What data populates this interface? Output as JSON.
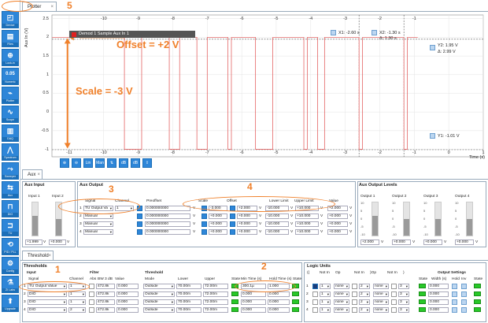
{
  "sidebar": {
    "items": [
      {
        "label": "Device",
        "icon": "device-icon",
        "glyph": "◰"
      },
      {
        "label": "Files",
        "icon": "files-icon",
        "glyph": "▤"
      },
      {
        "label": "Lock-in",
        "icon": "lockin-icon",
        "glyph": "⊕"
      },
      {
        "label": "Numeric",
        "icon": "numeric-icon",
        "glyph": "0.05"
      },
      {
        "label": "Plotter",
        "icon": "plotter-icon",
        "glyph": "⌁"
      },
      {
        "label": "Scope",
        "icon": "scope-icon",
        "glyph": "∿"
      },
      {
        "label": "DAQ",
        "icon": "daq-icon",
        "glyph": "▥"
      },
      {
        "label": "Spectrum",
        "icon": "spectrum-icon",
        "glyph": "⋀"
      },
      {
        "label": "Sweeper",
        "icon": "sweeper-icon",
        "glyph": "⤳"
      },
      {
        "label": "Aux",
        "icon": "aux-icon",
        "glyph": "⇆"
      },
      {
        "label": "DIO",
        "icon": "dio-icon",
        "glyph": "⊓"
      },
      {
        "label": "TU",
        "icon": "tu-icon",
        "glyph": "⊐"
      },
      {
        "label": "PID / PLL",
        "icon": "pid-icon",
        "glyph": "⟲"
      },
      {
        "label": "Config",
        "icon": "config-icon",
        "glyph": "⚙"
      },
      {
        "label": "ZI Labs",
        "icon": "zilabs-icon",
        "glyph": "⚗"
      },
      {
        "label": "Upgrade",
        "icon": "upgrade-icon",
        "glyph": "⬆"
      }
    ],
    "aux_side": [
      "Mon",
      "Lin"
    ]
  },
  "plotter": {
    "tab_label": "Plotter",
    "x_ticks": [
      "-10",
      "-9",
      "-8",
      "-7",
      "-6",
      "-5",
      "-4",
      "-3",
      "-2",
      "-1"
    ],
    "x_bottom_ticks": [
      "-11",
      "-10",
      "-9",
      "-8",
      "-7",
      "-6",
      "-5",
      "-4",
      "-3",
      "-2",
      "-1",
      "0",
      "1"
    ],
    "y_ticks": [
      "2.5",
      "2",
      "1.5",
      "1",
      "0.5",
      "0",
      "-0.5",
      "-1"
    ],
    "y_label": "Aux In (V)",
    "x_label": "Time (s)",
    "legend": "Demod 1 Sample Aux In 1",
    "cursor_x1": "X1: -2.60 s",
    "cursor_x2": "X2: -1.30 s",
    "cursor_dx": "Δ: 1.30 s",
    "cursor_y2": "Y2: 1.95 V",
    "cursor_dy": "Δ: 2.99 V",
    "cursor_y1": "Y1: -1.01 V",
    "tools": [
      "⊕",
      "⊖",
      "Lin",
      "Man",
      "⇅",
      "dB",
      "dB",
      "⇪"
    ],
    "annot_offset": "Offset = +2 V",
    "annot_scale": "Scale = -3 V",
    "annot_5": "5",
    "trace_color": "#e05050"
  },
  "chart_data": {
    "type": "line",
    "title": "",
    "xlabel": "Time (s)",
    "ylabel": "Aux In (V)",
    "xlim": [
      -11.5,
      1
    ],
    "ylim": [
      -1.2,
      2.6
    ],
    "series": [
      {
        "name": "Demod 1 Sample Aux In 1",
        "pulses_low": [
          [
            -9.4,
            -8.9
          ],
          [
            -8.1,
            -7.8
          ],
          [
            -7.3,
            -7.0
          ],
          [
            -6.4,
            -6.3
          ],
          [
            -5.6,
            -5.1
          ],
          [
            -4.2,
            -4.1
          ],
          [
            -3.8,
            -3.6
          ],
          [
            -2.6,
            -2.5
          ],
          [
            -1.3,
            -1.2
          ]
        ],
        "high": 2,
        "low": -1,
        "t_start": -11.5,
        "t_end": -0.9
      }
    ]
  },
  "aux": {
    "tab_label": "Aux",
    "aux_input_title": "Aux Input",
    "input1": "Input 1",
    "input2": "Input 2",
    "input_values": [
      "+1.999",
      "+0.000"
    ],
    "input_units": [
      "V",
      "V"
    ],
    "output_title": "Aux Output",
    "cols": [
      "Signal",
      "Channel",
      "Preoffset",
      "Scale",
      "Offset",
      "Lower Limit",
      "Upper Limit",
      "Value"
    ],
    "rows": [
      {
        "n": "1",
        "signal": "TU Output Va",
        "channel": "1",
        "preoffset": "0.000000000",
        "scale": "-3.000",
        "offset": "+2.000",
        "lower": "-10.000",
        "upper": "+10.000",
        "value": "+2.000",
        "unit": "V"
      },
      {
        "n": "2",
        "signal": "Manual",
        "channel": "",
        "preoffset": "0.000000000",
        "scale": "+0.000",
        "offset": "+0.000",
        "lower": "-10.000",
        "upper": "+10.000",
        "value": "+0.000",
        "unit": "V"
      },
      {
        "n": "3",
        "signal": "Manual",
        "channel": "",
        "preoffset": "0.000000000",
        "scale": "+0.000",
        "offset": "+0.000",
        "lower": "-10.000",
        "upper": "+10.000",
        "value": "+0.000",
        "unit": "V"
      },
      {
        "n": "4",
        "signal": "Manual",
        "channel": "",
        "preoffset": "0.000000000",
        "scale": "+0.000",
        "offset": "+0.000",
        "lower": "-10.000",
        "upper": "+10.000",
        "value": "+0.000",
        "unit": "V"
      }
    ],
    "levels_title": "Aux Output Levels",
    "levels": [
      {
        "label": "Output 1",
        "value": "+2.000",
        "fill": 0.6
      },
      {
        "label": "Output 2",
        "value": "+0.000",
        "fill": 0.5
      },
      {
        "label": "Output 3",
        "value": "+0.000",
        "fill": 0.5
      },
      {
        "label": "Output 4",
        "value": "+0.000",
        "fill": 0.5
      }
    ],
    "level_ticks": [
      "10",
      "5",
      "0",
      "-5",
      "-10"
    ],
    "v": "V",
    "annot_3": "3",
    "annot_4": "4"
  },
  "threshold": {
    "tab_label": "Threshold",
    "title": "Thresholds",
    "input_hdr": "Input",
    "signal_hdr": "Signal",
    "channel_hdr": "Channel",
    "filter_hdr": "Filter",
    "abs_hdr": "Abs",
    "bw_hdr": "BW 3 dB",
    "value_hdr": "Value",
    "threshold_hdr": "Threshold",
    "mode_hdr": "Mode",
    "lower_hdr": "Lower",
    "upper_hdr": "Upper",
    "state_hdr": "State",
    "mintime_hdr": "Min Time (s)",
    "holdoff_hdr": "Hold Time (s)",
    "state2_hdr": "State",
    "rows": [
      {
        "n": "1",
        "signal": "TU Output Value",
        "channel": "1",
        "bw": "472.8k",
        "value": "0.000",
        "mode": "Outside",
        "lower": "70.00m",
        "upper": "72.00m",
        "mintime": "300.1µ",
        "hold": "1.000"
      },
      {
        "n": "2",
        "signal": "DIO",
        "channel": "1",
        "bw": "472.8k",
        "value": "0.000",
        "mode": "Outside",
        "lower": "70.00m",
        "upper": "72.00m",
        "mintime": "0.000",
        "hold": "0.000"
      },
      {
        "n": "3",
        "signal": "DIO",
        "channel": "1",
        "bw": "472.8k",
        "value": "0.000",
        "mode": "Outside",
        "lower": "70.00m",
        "upper": "72.00m",
        "mintime": "0.000",
        "hold": "0.000"
      },
      {
        "n": "4",
        "signal": "DIO",
        "channel": "2",
        "bw": "472.8k",
        "value": "0.000",
        "mode": "Outside",
        "lower": "70.00m",
        "upper": "72.00m",
        "mintime": "0.000",
        "hold": "0.000"
      }
    ],
    "logic_title": "Logic Units",
    "logic_hdrs": [
      "((",
      "Not In",
      "Op",
      "Not In",
      ")Op",
      "Not In",
      ")"
    ],
    "logic_rows": [
      {
        "n": "1",
        "in1": "1",
        "op1": "none",
        "in2": "2",
        "op2": "none",
        "in3": "3"
      },
      {
        "n": "2",
        "in1": "1",
        "op1": "none",
        "in2": "2",
        "op2": "none",
        "in3": "3"
      },
      {
        "n": "3",
        "in1": "1",
        "op1": "none",
        "in2": "2",
        "op2": "none",
        "in3": "3"
      },
      {
        "n": "4",
        "in1": "1",
        "op1": "none",
        "in2": "2",
        "op2": "none",
        "in3": "3"
      }
    ],
    "out_title": "Output Settings",
    "out_hdrs": [
      "State",
      "Width (s)",
      "Hold",
      "Inv",
      "State"
    ],
    "out_rows": [
      {
        "width": "0.000"
      },
      {
        "width": "0.000"
      },
      {
        "width": "0.000"
      },
      {
        "width": "0.000"
      }
    ],
    "annot_1": "1",
    "annot_2": "2"
  }
}
